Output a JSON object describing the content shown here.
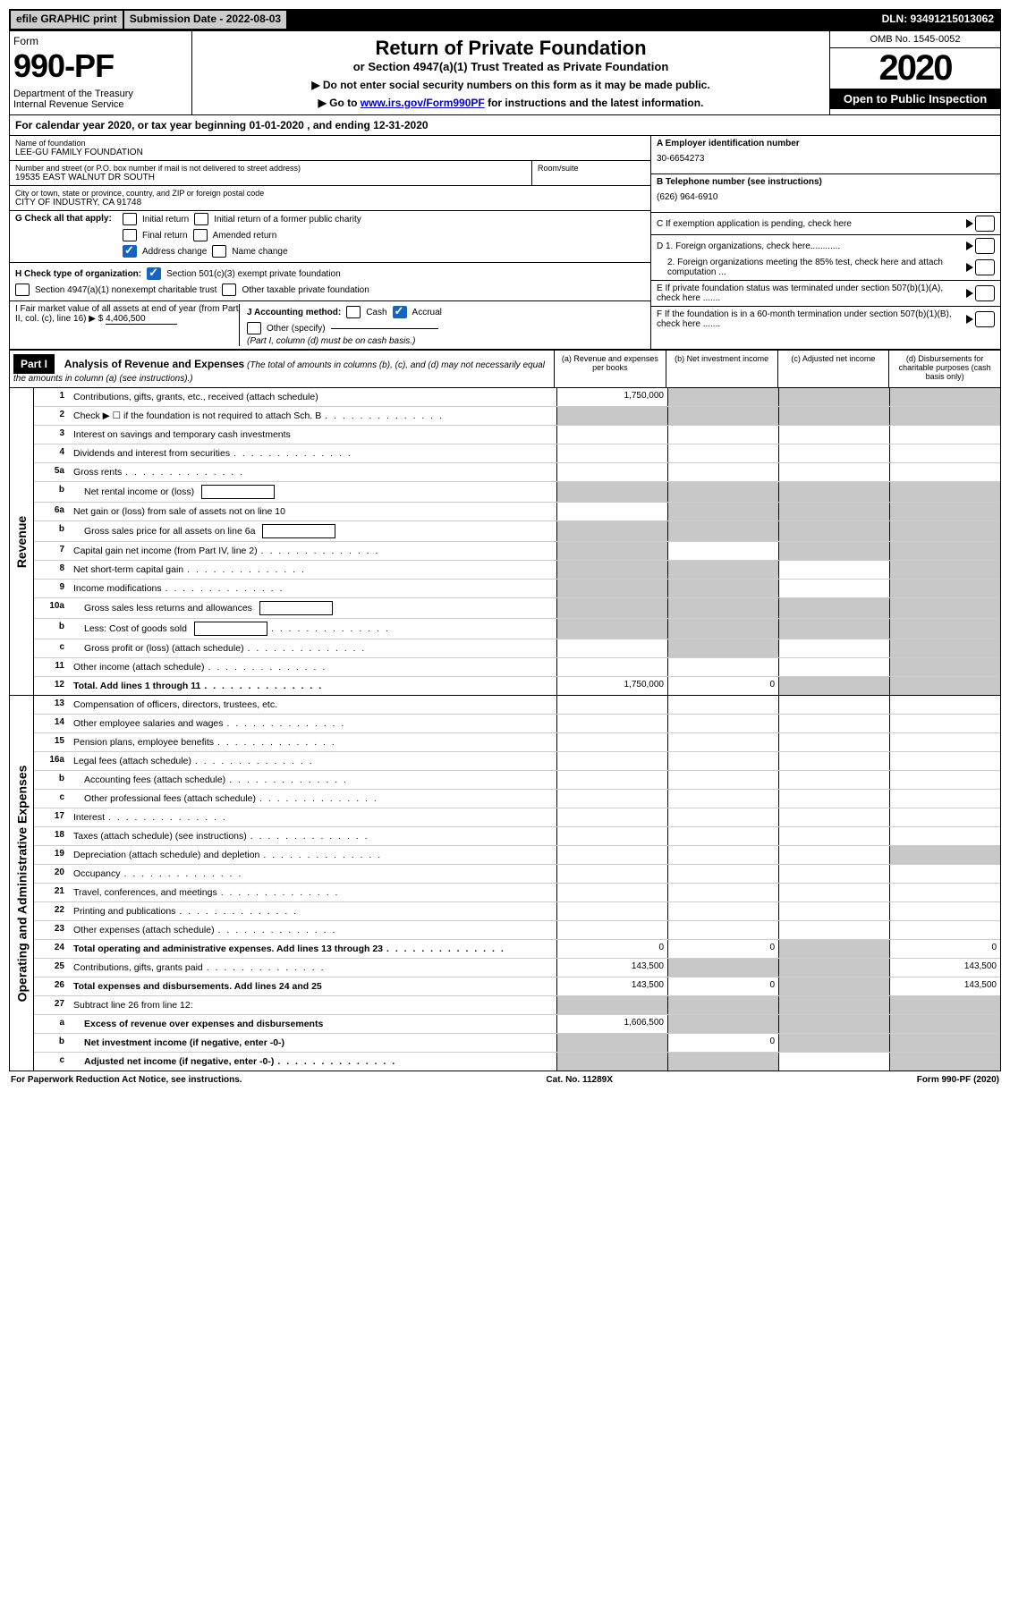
{
  "topbar": {
    "efile": "efile GRAPHIC print",
    "submission": "Submission Date - 2022-08-03",
    "dln": "DLN: 93491215013062"
  },
  "header": {
    "form_label": "Form",
    "form_no": "990-PF",
    "dept": "Department of the Treasury\nInternal Revenue Service",
    "title": "Return of Private Foundation",
    "subtitle": "or Section 4947(a)(1) Trust Treated as Private Foundation",
    "note1": "▶ Do not enter social security numbers on this form as it may be made public.",
    "note2_pre": "▶ Go to ",
    "note2_link": "www.irs.gov/Form990PF",
    "note2_post": " for instructions and the latest information.",
    "omb": "OMB No. 1545-0052",
    "year": "2020",
    "open": "Open to Public Inspection"
  },
  "calyear": "For calendar year 2020, or tax year beginning 01-01-2020                           , and ending 12-31-2020",
  "info": {
    "name_label": "Name of foundation",
    "name": "LEE-GU FAMILY FOUNDATION",
    "addr_label": "Number and street (or P.O. box number if mail is not delivered to street address)",
    "addr": "19535 EAST WALNUT DR SOUTH",
    "room_label": "Room/suite",
    "city_label": "City or town, state or province, country, and ZIP or foreign postal code",
    "city": "CITY OF INDUSTRY, CA  91748",
    "ein_label": "A Employer identification number",
    "ein": "30-6654273",
    "tel_label": "B Telephone number (see instructions)",
    "tel": "(626) 964-6910",
    "c_label": "C  If exemption application is pending, check here",
    "d1": "D 1. Foreign organizations, check here............",
    "d2": "2. Foreign organizations meeting the 85% test, check here and attach computation ...",
    "e": "E  If private foundation status was terminated under section 507(b)(1)(A), check here .......",
    "f": "F  If the foundation is in a 60-month termination under section 507(b)(1)(B), check here .......",
    "g_label": "G Check all that apply:",
    "g_opts": [
      "Initial return",
      "Initial return of a former public charity",
      "Final return",
      "Amended return",
      "Address change",
      "Name change"
    ],
    "h_label": "H Check type of organization:",
    "h1": "Section 501(c)(3) exempt private foundation",
    "h2": "Section 4947(a)(1) nonexempt charitable trust",
    "h3": "Other taxable private foundation",
    "i_label": "I Fair market value of all assets at end of year (from Part II, col. (c), line 16) ▶ $",
    "i_val": "4,406,500",
    "j_label": "J Accounting method:",
    "j_cash": "Cash",
    "j_accrual": "Accrual",
    "j_other": "Other (specify)",
    "j_note": "(Part I, column (d) must be on cash basis.)"
  },
  "part1": {
    "label": "Part I",
    "title": "Analysis of Revenue and Expenses",
    "sub": " (The total of amounts in columns (b), (c), and (d) may not necessarily equal the amounts in column (a) (see instructions).)",
    "col_a": "(a)   Revenue and expenses per books",
    "col_b": "(b)   Net investment income",
    "col_c": "(c)   Adjusted net income",
    "col_d": "(d)   Disbursements for charitable purposes (cash basis only)"
  },
  "revenue_label": "Revenue",
  "opex_label": "Operating and Administrative Expenses",
  "rows_rev": [
    {
      "no": "1",
      "desc": "Contributions, gifts, grants, etc., received (attach schedule)",
      "a": "1,750,000",
      "grey_b": true,
      "grey_c": true,
      "grey_d": true
    },
    {
      "no": "2",
      "desc": "Check ▶ ☐ if the foundation is not required to attach Sch. B",
      "dots": true,
      "grey_all": true
    },
    {
      "no": "3",
      "desc": "Interest on savings and temporary cash investments"
    },
    {
      "no": "4",
      "desc": "Dividends and interest from securities",
      "dots": true
    },
    {
      "no": "5a",
      "desc": "Gross rents",
      "dots": true
    },
    {
      "no": "b",
      "desc": "Net rental income or (loss)",
      "inset": true,
      "box": true,
      "grey_all": true
    },
    {
      "no": "6a",
      "desc": "Net gain or (loss) from sale of assets not on line 10",
      "grey_b": true,
      "grey_c": true,
      "grey_d": true
    },
    {
      "no": "b",
      "desc": "Gross sales price for all assets on line 6a",
      "inset": true,
      "box": true,
      "grey_all": true
    },
    {
      "no": "7",
      "desc": "Capital gain net income (from Part IV, line 2)",
      "dots": true,
      "grey_a": true,
      "grey_c": true,
      "grey_d": true
    },
    {
      "no": "8",
      "desc": "Net short-term capital gain",
      "dots": true,
      "grey_a": true,
      "grey_b": true,
      "grey_d": true
    },
    {
      "no": "9",
      "desc": "Income modifications",
      "dots": true,
      "grey_a": true,
      "grey_b": true,
      "grey_d": true
    },
    {
      "no": "10a",
      "desc": "Gross sales less returns and allowances",
      "inset": true,
      "box": true,
      "grey_all": true
    },
    {
      "no": "b",
      "desc": "Less: Cost of goods sold",
      "inset": true,
      "dots": true,
      "box": true,
      "grey_all": true
    },
    {
      "no": "c",
      "desc": "Gross profit or (loss) (attach schedule)",
      "inset": true,
      "dots": true,
      "grey_b": true,
      "grey_d": true
    },
    {
      "no": "11",
      "desc": "Other income (attach schedule)",
      "dots": true,
      "grey_d": true
    },
    {
      "no": "12",
      "desc": "Total. Add lines 1 through 11",
      "bold": true,
      "dots": true,
      "a": "1,750,000",
      "b": "0",
      "grey_c": true,
      "grey_d": true
    }
  ],
  "rows_op": [
    {
      "no": "13",
      "desc": "Compensation of officers, directors, trustees, etc."
    },
    {
      "no": "14",
      "desc": "Other employee salaries and wages",
      "dots": true
    },
    {
      "no": "15",
      "desc": "Pension plans, employee benefits",
      "dots": true
    },
    {
      "no": "16a",
      "desc": "Legal fees (attach schedule)",
      "dots": true
    },
    {
      "no": "b",
      "desc": "Accounting fees (attach schedule)",
      "inset": true,
      "dots": true
    },
    {
      "no": "c",
      "desc": "Other professional fees (attach schedule)",
      "inset": true,
      "dots": true
    },
    {
      "no": "17",
      "desc": "Interest",
      "dots": true
    },
    {
      "no": "18",
      "desc": "Taxes (attach schedule) (see instructions)",
      "dots": true
    },
    {
      "no": "19",
      "desc": "Depreciation (attach schedule) and depletion",
      "dots": true,
      "grey_d": true
    },
    {
      "no": "20",
      "desc": "Occupancy",
      "dots": true
    },
    {
      "no": "21",
      "desc": "Travel, conferences, and meetings",
      "dots": true
    },
    {
      "no": "22",
      "desc": "Printing and publications",
      "dots": true
    },
    {
      "no": "23",
      "desc": "Other expenses (attach schedule)",
      "dots": true
    },
    {
      "no": "24",
      "desc": "Total operating and administrative expenses. Add lines 13 through 23",
      "bold": true,
      "dots": true,
      "a": "0",
      "b": "0",
      "grey_c": true,
      "d": "0"
    },
    {
      "no": "25",
      "desc": "Contributions, gifts, grants paid",
      "dots": true,
      "a": "143,500",
      "grey_b": true,
      "grey_c": true,
      "d": "143,500"
    },
    {
      "no": "26",
      "desc": "Total expenses and disbursements. Add lines 24 and 25",
      "bold": true,
      "a": "143,500",
      "b": "0",
      "grey_c": true,
      "d": "143,500"
    },
    {
      "no": "27",
      "desc": "Subtract line 26 from line 12:",
      "grey_all": true
    },
    {
      "no": "a",
      "desc": "Excess of revenue over expenses and disbursements",
      "inset": true,
      "bold": true,
      "a": "1,606,500",
      "grey_b": true,
      "grey_c": true,
      "grey_d": true
    },
    {
      "no": "b",
      "desc": "Net investment income (if negative, enter -0-)",
      "inset": true,
      "bold": true,
      "grey_a": true,
      "b": "0",
      "grey_c": true,
      "grey_d": true
    },
    {
      "no": "c",
      "desc": "Adjusted net income (if negative, enter -0-)",
      "inset": true,
      "bold": true,
      "dots": true,
      "grey_a": true,
      "grey_b": true,
      "grey_d": true
    }
  ],
  "footer": {
    "left": "For Paperwork Reduction Act Notice, see instructions.",
    "mid": "Cat. No. 11289X",
    "right": "Form 990-PF (2020)"
  }
}
